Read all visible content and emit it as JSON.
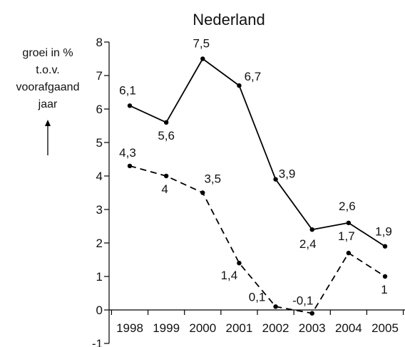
{
  "chart_data": {
    "type": "line",
    "title": "Nederland",
    "ylabel_lines": [
      "groei in %",
      "t.o.v.",
      "voorafgaand",
      "jaar"
    ],
    "xlabel": "",
    "categories": [
      "1998",
      "1999",
      "2000",
      "2001",
      "2002",
      "2003",
      "2004",
      "2005"
    ],
    "ylim": [
      -1,
      8
    ],
    "yticks": [
      -1,
      0,
      1,
      2,
      3,
      4,
      5,
      6,
      7,
      8
    ],
    "ytick_labels": [
      "-1",
      "0",
      "1",
      "2",
      "3",
      "4",
      "5",
      "6",
      "7",
      "8"
    ],
    "grid": false,
    "legend": "none",
    "series": [
      {
        "style": "solid",
        "color": "#000000",
        "values": [
          6.1,
          5.6,
          7.5,
          6.7,
          3.9,
          2.4,
          2.6,
          1.9
        ],
        "labels": [
          "6,1",
          "5,6",
          "7,5",
          "6,7",
          "3,9",
          "2,4",
          "2,6",
          "1,9"
        ]
      },
      {
        "style": "dashed",
        "color": "#000000",
        "values": [
          4.3,
          4.0,
          3.5,
          1.4,
          0.1,
          -0.1,
          1.7,
          1.0
        ],
        "labels": [
          "4,3",
          "4",
          "3,5",
          "1,4",
          "0,1",
          "-0,1",
          "1,7",
          "1"
        ]
      }
    ]
  }
}
